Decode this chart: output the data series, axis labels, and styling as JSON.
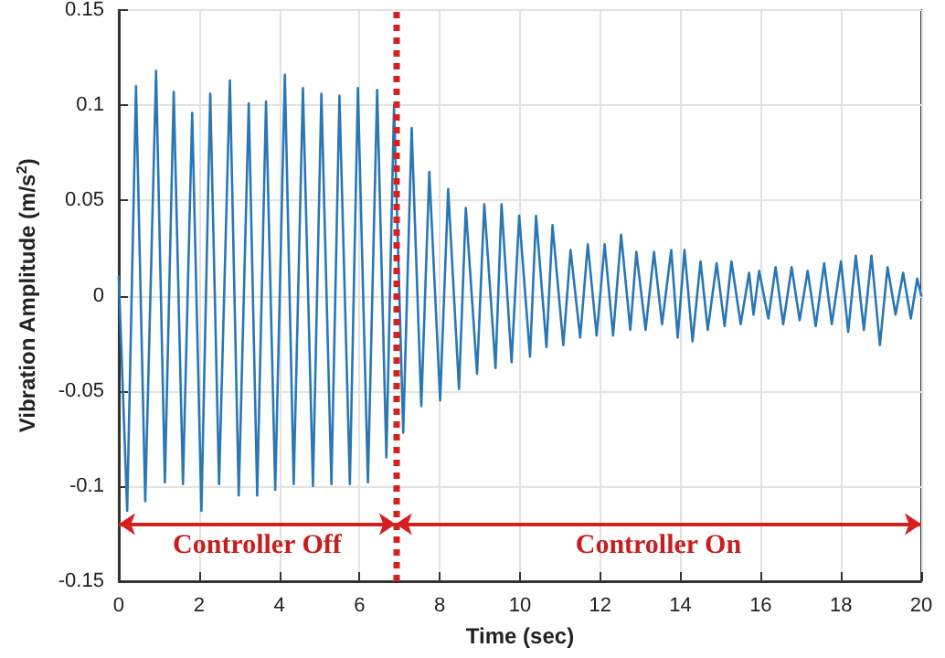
{
  "chart_data": {
    "type": "line",
    "xlabel": "Time (sec)",
    "ylabel": "Vibration Amplitude (m/s$^{2}$)",
    "xlim": [
      0,
      20
    ],
    "xticks": [
      0,
      2,
      4,
      6,
      8,
      10,
      12,
      14,
      16,
      18,
      20
    ],
    "ylim": [
      -0.15,
      0.15
    ],
    "yticks": [
      -0.15,
      -0.1,
      -0.05,
      0,
      0.05,
      0.1,
      0.15
    ],
    "grid": true,
    "marker": "none",
    "line_style": "solid",
    "ref_lines": [
      {
        "axis": "x",
        "value": 6.9,
        "color": "#d62020",
        "line_style": "dotted"
      }
    ],
    "annotations": [
      "Controller Off",
      "Controller On"
    ],
    "series": [
      {
        "color": "#2a77b4",
        "x": [
          0,
          0.21,
          0.43,
          0.66,
          0.93,
          1.15,
          1.37,
          1.6,
          1.83,
          2.06,
          2.28,
          2.5,
          2.77,
          2.99,
          3.24,
          3.45,
          3.67,
          3.9,
          4.14,
          4.36,
          4.59,
          4.84,
          5.05,
          5.3,
          5.5,
          5.76,
          5.96,
          6.21,
          6.44,
          6.67,
          6.86,
          7.09,
          7.3,
          7.54,
          7.74,
          8.01,
          8.21,
          8.48,
          8.65,
          8.93,
          9.11,
          9.39,
          9.54,
          9.79,
          9.98,
          10.25,
          10.4,
          10.66,
          10.81,
          11.08,
          11.26,
          11.5,
          11.69,
          11.91,
          12.11,
          12.32,
          12.52,
          12.75,
          12.9,
          13.13,
          13.34,
          13.54,
          13.77,
          13.93,
          14.1,
          14.3,
          14.5,
          14.68,
          14.9,
          15.1,
          15.27,
          15.5,
          15.71,
          15.82,
          15.96,
          16.19,
          16.37,
          16.56,
          16.77,
          16.97,
          17.17,
          17.37,
          17.58,
          17.77,
          18.0,
          18.18,
          18.37,
          18.57,
          18.76,
          18.97,
          19.16,
          19.36,
          19.55,
          19.74,
          19.9,
          20
        ],
        "values": [
          0.01,
          -0.113,
          0.11,
          -0.108,
          0.118,
          -0.098,
          0.107,
          -0.099,
          0.096,
          -0.113,
          0.106,
          -0.099,
          0.113,
          -0.105,
          0.101,
          -0.105,
          0.102,
          -0.102,
          0.116,
          -0.099,
          0.109,
          -0.1,
          0.106,
          -0.099,
          0.105,
          -0.099,
          0.109,
          -0.098,
          0.108,
          -0.085,
          0.1,
          -0.072,
          0.088,
          -0.058,
          0.065,
          -0.055,
          0.056,
          -0.049,
          0.046,
          -0.041,
          0.048,
          -0.038,
          0.048,
          -0.035,
          0.042,
          -0.032,
          0.042,
          -0.027,
          0.037,
          -0.026,
          0.024,
          -0.022,
          0.027,
          -0.021,
          0.027,
          -0.021,
          0.032,
          -0.018,
          0.023,
          -0.018,
          0.023,
          -0.015,
          0.024,
          -0.022,
          0.024,
          -0.024,
          0.018,
          -0.018,
          0.017,
          -0.016,
          0.018,
          -0.015,
          0.012,
          -0.01,
          0.013,
          -0.012,
          0.015,
          -0.015,
          0.015,
          -0.013,
          0.013,
          -0.016,
          0.017,
          -0.015,
          0.018,
          -0.019,
          0.021,
          -0.018,
          0.021,
          -0.026,
          0.015,
          -0.01,
          0.012,
          -0.012,
          0.009,
          0
        ]
      }
    ]
  }
}
